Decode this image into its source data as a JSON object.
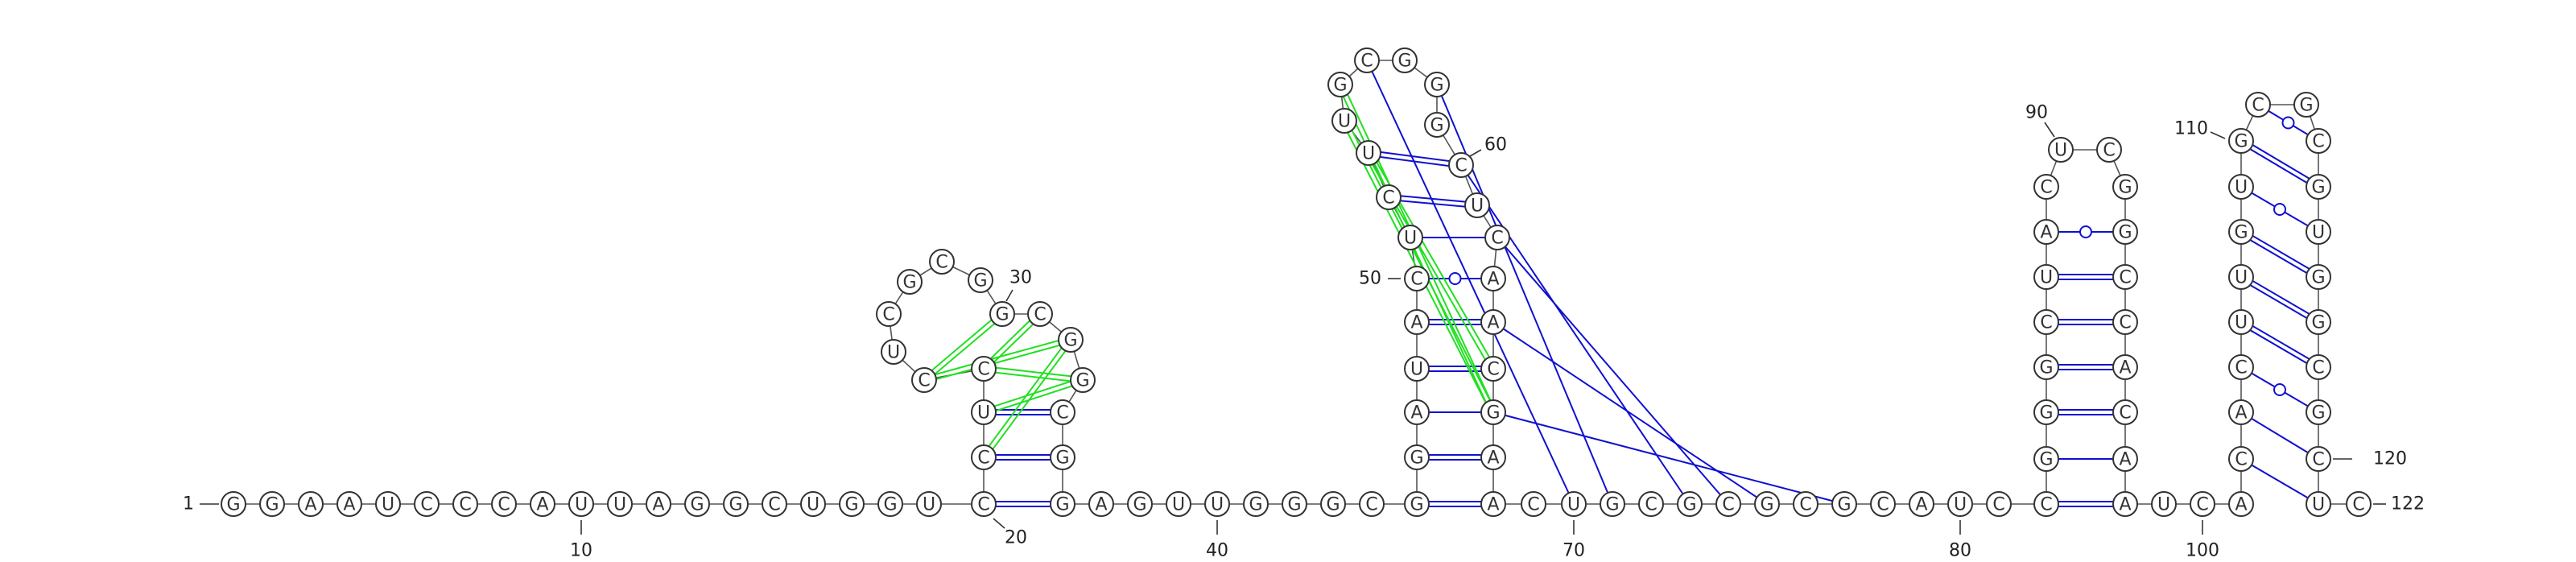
{
  "diagram": {
    "sequence": [
      "G",
      "G",
      "A",
      "A",
      "U",
      "C",
      "C",
      "C",
      "A",
      "U",
      "U",
      "A",
      "G",
      "G",
      "C",
      "U",
      "G",
      "G",
      "U",
      "C",
      "C",
      "U",
      "C",
      "C",
      "U",
      "C",
      "G",
      "C",
      "G",
      "G",
      "C",
      "G",
      "G",
      "C",
      "G",
      "G",
      "A",
      "G",
      "U",
      "U",
      "G",
      "G",
      "G",
      "C",
      "G",
      "G",
      "A",
      "U",
      "A",
      "C",
      "U",
      "C",
      "U",
      "U",
      "G",
      "C",
      "G",
      "G",
      "G",
      "C",
      "U",
      "C",
      "A",
      "A",
      "C",
      "G",
      "A",
      "A",
      "C",
      "U",
      "G",
      "C",
      "G",
      "C",
      "G",
      "C",
      "G",
      "C",
      "A",
      "U",
      "C",
      "C",
      "G",
      "G",
      "G",
      "C",
      "U",
      "A",
      "C",
      "U",
      "C",
      "G",
      "G",
      "C",
      "C",
      "A",
      "C",
      "A",
      "A",
      "U",
      "C",
      "A",
      "C",
      "A",
      "C",
      "U",
      "U",
      "G",
      "U",
      "G",
      "C",
      "G",
      "C",
      "G",
      "U",
      "G",
      "G",
      "C",
      "G",
      "C",
      "U",
      "C"
    ],
    "position_labels": [
      {
        "index": 1,
        "text": "1"
      },
      {
        "index": 10,
        "text": "10"
      },
      {
        "index": 20,
        "text": "20"
      },
      {
        "index": 30,
        "text": "30"
      },
      {
        "index": 40,
        "text": "40"
      },
      {
        "index": 50,
        "text": "50"
      },
      {
        "index": 60,
        "text": "60"
      },
      {
        "index": 70,
        "text": "70"
      },
      {
        "index": 80,
        "text": "80"
      },
      {
        "index": 90,
        "text": "90"
      },
      {
        "index": 100,
        "text": "100"
      },
      {
        "index": 110,
        "text": "110"
      },
      {
        "index": 120,
        "text": "120"
      },
      {
        "index": 122,
        "text": "122"
      }
    ],
    "pairs": [
      {
        "i": 20,
        "j": 21,
        "type": "wc",
        "color": "#1010d0"
      },
      {
        "i": 45,
        "j": 67,
        "type": "wc",
        "color": "#1010d0"
      },
      {
        "i": 94,
        "j": 98,
        "type": "wc",
        "color": "#1010d0"
      },
      {
        "i": 114,
        "j": 118,
        "type": "wc",
        "color": "#1010d0"
      }
    ],
    "pseudoknot_color": "#20e020",
    "pair_color": "#1010d0",
    "backbone_color": "#555555"
  }
}
